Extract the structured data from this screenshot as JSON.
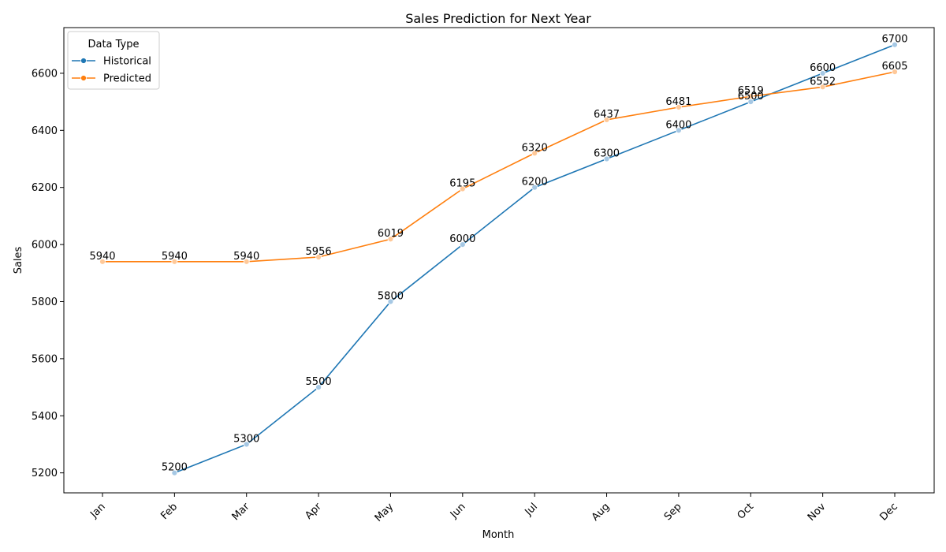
{
  "chart_data": {
    "type": "line",
    "title": "Sales Prediction for Next Year",
    "xlabel": "Month",
    "ylabel": "Sales",
    "categories": [
      "Jan",
      "Feb",
      "Mar",
      "Apr",
      "May",
      "Jun",
      "Jul",
      "Aug",
      "Sep",
      "Oct",
      "Nov",
      "Dec"
    ],
    "ylim": [
      5130,
      6760
    ],
    "yticks": [
      5200,
      5400,
      5600,
      5800,
      6000,
      6200,
      6400,
      6600
    ],
    "grid": false,
    "legend": {
      "title": "Data Type",
      "placement": "top-left"
    },
    "series": [
      {
        "name": "Historical",
        "color": "#1f77b4",
        "marker_color": "#a6c8e4",
        "values": [
          null,
          5200,
          5300,
          5500,
          5800,
          6000,
          6200,
          6300,
          6400,
          6500,
          6600,
          6700
        ]
      },
      {
        "name": "Predicted",
        "color": "#ff7f0e",
        "marker_color": "#ffc999",
        "values": [
          5940,
          5940,
          5940,
          5956,
          6019,
          6195,
          6320,
          6437,
          6481,
          6519,
          6552,
          6605
        ]
      }
    ]
  }
}
